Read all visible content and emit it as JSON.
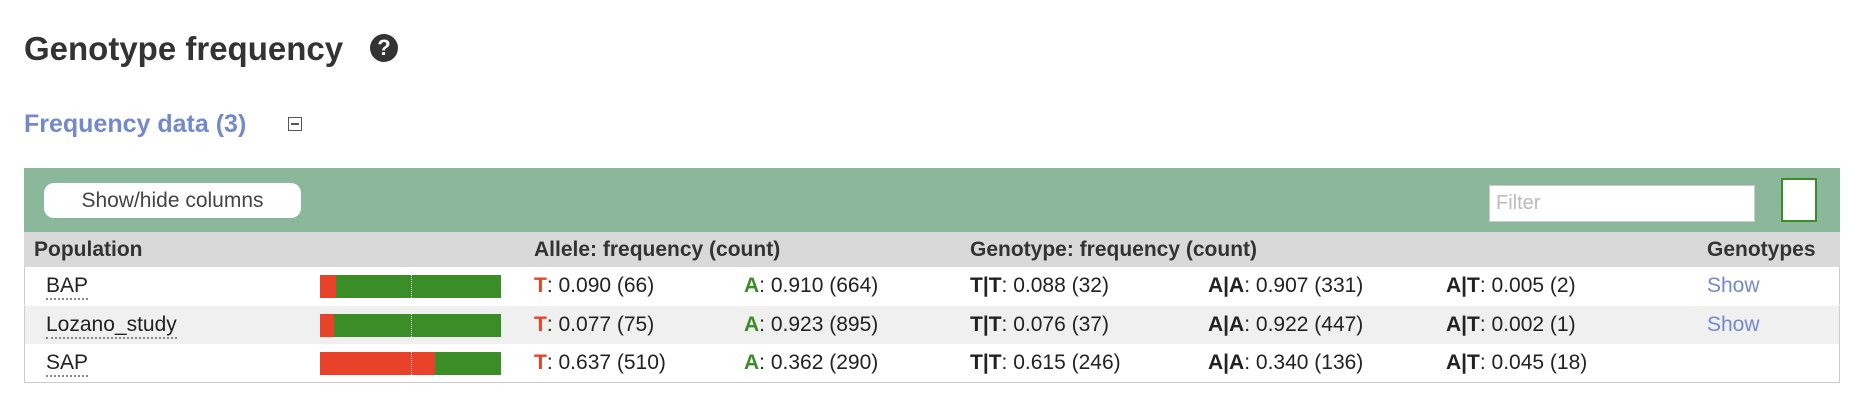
{
  "header": {
    "title": "Genotype frequency"
  },
  "section": {
    "title": "Frequency data (3)"
  },
  "toolbar": {
    "button": "Show/hide columns",
    "filter_placeholder": "Filter"
  },
  "table": {
    "allele_colors": [
      "#e8432a",
      "#3a8d27"
    ],
    "columns": [
      "Population",
      "Allele: frequency (count)",
      "Genotype: frequency (count)",
      "Genotypes"
    ],
    "rows": [
      {
        "population": "BAP",
        "allele_bar": [
          0.09,
          0.91
        ],
        "alleles": [
          {
            "allele": "T",
            "text": ": 0.090 (66)"
          },
          {
            "allele": "A",
            "text": ": 0.910 (664)"
          }
        ],
        "genotypes": [
          {
            "genotype": "T|T",
            "text": ": 0.088 (32)"
          },
          {
            "genotype": "A|A",
            "text": ": 0.907 (331)"
          },
          {
            "genotype": "A|T",
            "text": ": 0.005 (2)"
          }
        ],
        "link": "Show"
      },
      {
        "population": "Lozano_study",
        "allele_bar": [
          0.077,
          0.923
        ],
        "alleles": [
          {
            "allele": "T",
            "text": ": 0.077 (75)"
          },
          {
            "allele": "A",
            "text": ": 0.923 (895)"
          }
        ],
        "genotypes": [
          {
            "genotype": "T|T",
            "text": ": 0.076 (37)"
          },
          {
            "genotype": "A|A",
            "text": ": 0.922 (447)"
          },
          {
            "genotype": "A|T",
            "text": ": 0.002 (1)"
          }
        ],
        "link": "Show"
      },
      {
        "population": "SAP",
        "allele_bar": [
          0.637,
          0.362
        ],
        "alleles": [
          {
            "allele": "T",
            "text": ": 0.637 (510)"
          },
          {
            "allele": "A",
            "text": ": 0.362 (290)"
          }
        ],
        "genotypes": [
          {
            "genotype": "T|T",
            "text": ": 0.615 (246)"
          },
          {
            "genotype": "A|A",
            "text": ": 0.340 (136)"
          },
          {
            "genotype": "A|T",
            "text": ": 0.045 (18)"
          }
        ]
      }
    ]
  }
}
